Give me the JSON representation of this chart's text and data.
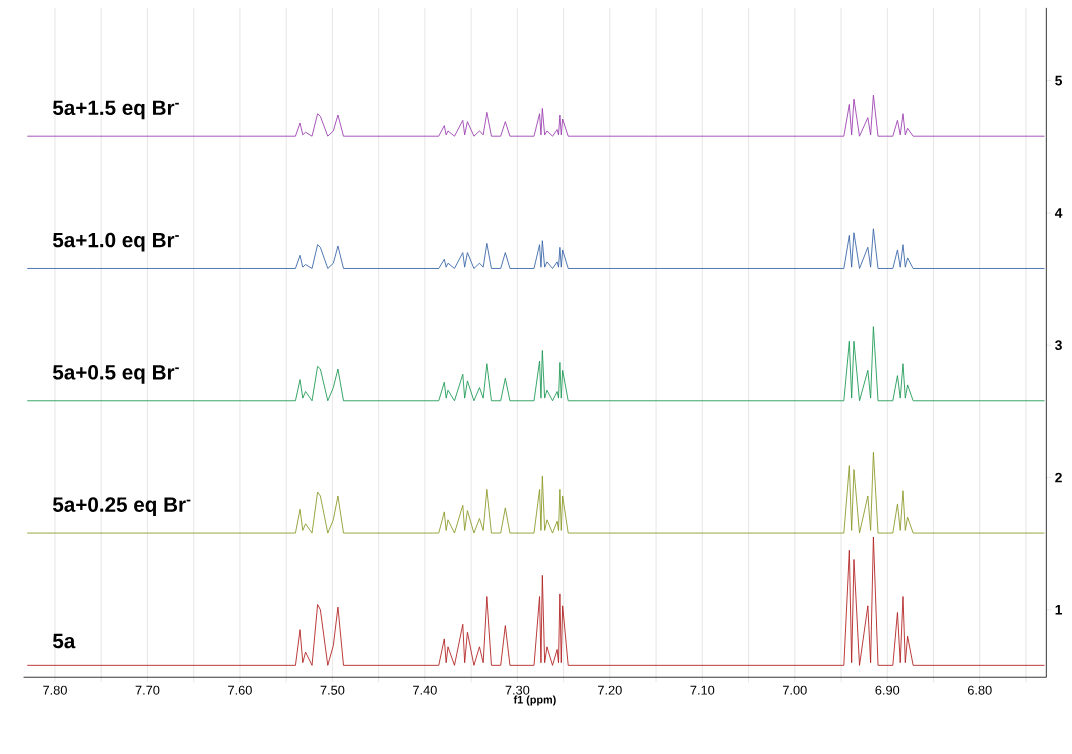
{
  "chart_data": {
    "type": "line",
    "xlabel": "f1 (ppm)",
    "grid": "x",
    "xlim": [
      7.834,
      6.728
    ],
    "ylim": [
      0.49,
      5.55
    ],
    "xticks": [
      {
        "value": 7.8,
        "label": "7.80"
      },
      {
        "value": 7.75,
        "label": null
      },
      {
        "value": 7.7,
        "label": "7.70"
      },
      {
        "value": 7.65,
        "label": null
      },
      {
        "value": 7.6,
        "label": "7.60"
      },
      {
        "value": 7.55,
        "label": null
      },
      {
        "value": 7.5,
        "label": "7.50"
      },
      {
        "value": 7.45,
        "label": null
      },
      {
        "value": 7.4,
        "label": "7.40"
      },
      {
        "value": 7.35,
        "label": null
      },
      {
        "value": 7.3,
        "label": "7.30"
      },
      {
        "value": 7.25,
        "label": null
      },
      {
        "value": 7.2,
        "label": "7.20"
      },
      {
        "value": 7.15,
        "label": null
      },
      {
        "value": 7.1,
        "label": "7.10"
      },
      {
        "value": 7.05,
        "label": null
      },
      {
        "value": 7.0,
        "label": "7.00"
      },
      {
        "value": 6.95,
        "label": null
      },
      {
        "value": 6.9,
        "label": "6.90"
      },
      {
        "value": 6.85,
        "label": null
      },
      {
        "value": 6.8,
        "label": "6.80"
      },
      {
        "value": 6.75,
        "label": null
      }
    ],
    "yticks": [
      1,
      2,
      3,
      4,
      5
    ],
    "x": [
      7.83,
      7.54,
      7.535,
      7.532,
      7.529,
      7.522,
      7.516,
      7.513,
      7.505,
      7.499,
      7.494,
      7.488,
      7.385,
      7.379,
      7.377,
      7.375,
      7.368,
      7.359,
      7.357,
      7.354,
      7.347,
      7.341,
      7.337,
      7.333,
      7.328,
      7.318,
      7.313,
      7.308,
      7.282,
      7.276,
      7.2745,
      7.273,
      7.2705,
      7.268,
      7.262,
      7.257,
      7.2555,
      7.254,
      7.2525,
      7.251,
      7.245,
      6.947,
      6.941,
      6.9385,
      6.936,
      6.93,
      6.921,
      6.918,
      6.915,
      6.91,
      6.894,
      6.889,
      6.886,
      6.883,
      6.8805,
      6.878,
      6.872,
      6.73
    ],
    "series": [
      {
        "name": "5a",
        "color": "#b22222",
        "values": [
          0.58,
          0.58,
          0.85,
          0.6,
          0.68,
          0.58,
          1.04,
          1.0,
          0.58,
          0.73,
          1.02,
          0.58,
          0.58,
          0.78,
          0.6,
          0.72,
          0.58,
          0.89,
          0.6,
          0.83,
          0.58,
          0.72,
          0.6,
          1.1,
          0.58,
          0.58,
          0.88,
          0.58,
          0.58,
          1.1,
          0.6,
          1.26,
          0.6,
          0.72,
          0.58,
          0.7,
          0.6,
          1.12,
          0.6,
          1.03,
          0.58,
          0.58,
          1.45,
          0.6,
          1.38,
          0.58,
          1.03,
          0.6,
          1.55,
          0.58,
          0.58,
          0.98,
          0.6,
          1.1,
          0.6,
          0.8,
          0.58,
          0.58
        ]
      },
      {
        "name": "5a+0.25 eq Br$^{-}$",
        "color": "#8c9a2a",
        "values": [
          1.58,
          1.58,
          1.76,
          1.6,
          1.65,
          1.58,
          1.89,
          1.86,
          1.58,
          1.68,
          1.86,
          1.58,
          1.58,
          1.74,
          1.6,
          1.68,
          1.58,
          1.79,
          1.6,
          1.75,
          1.58,
          1.69,
          1.6,
          1.91,
          1.58,
          1.58,
          1.77,
          1.58,
          1.58,
          1.91,
          1.6,
          2.01,
          1.6,
          1.68,
          1.58,
          1.67,
          1.6,
          1.91,
          1.6,
          1.86,
          1.58,
          1.58,
          2.09,
          1.6,
          2.06,
          1.58,
          1.86,
          1.6,
          2.19,
          1.58,
          1.58,
          1.8,
          1.6,
          1.9,
          1.6,
          1.7,
          1.58,
          1.58
        ]
      },
      {
        "name": "5a+0.5 eq Br$^{-}$",
        "color": "#1f9a55",
        "values": [
          2.58,
          2.58,
          2.74,
          2.6,
          2.65,
          2.58,
          2.84,
          2.82,
          2.58,
          2.68,
          2.82,
          2.58,
          2.58,
          2.72,
          2.6,
          2.66,
          2.58,
          2.78,
          2.6,
          2.73,
          2.58,
          2.68,
          2.6,
          2.86,
          2.58,
          2.58,
          2.75,
          2.58,
          2.58,
          2.88,
          2.6,
          2.96,
          2.6,
          2.66,
          2.58,
          2.65,
          2.6,
          2.87,
          2.6,
          2.81,
          2.58,
          2.58,
          3.03,
          2.6,
          3.03,
          2.58,
          2.81,
          2.6,
          3.14,
          2.58,
          2.58,
          2.77,
          2.6,
          2.86,
          2.6,
          2.7,
          2.58,
          2.58
        ]
      },
      {
        "name": "5a+1.0 eq Br$^{-}$",
        "color": "#3a66a8",
        "values": [
          3.58,
          3.58,
          3.68,
          3.59,
          3.61,
          3.58,
          3.76,
          3.74,
          3.58,
          3.62,
          3.75,
          3.58,
          3.58,
          3.65,
          3.59,
          3.62,
          3.58,
          3.7,
          3.59,
          3.7,
          3.58,
          3.62,
          3.59,
          3.77,
          3.58,
          3.58,
          3.7,
          3.58,
          3.58,
          3.76,
          3.59,
          3.79,
          3.59,
          3.63,
          3.58,
          3.63,
          3.59,
          3.74,
          3.59,
          3.72,
          3.58,
          3.58,
          3.83,
          3.59,
          3.85,
          3.58,
          3.74,
          3.59,
          3.88,
          3.58,
          3.58,
          3.72,
          3.59,
          3.76,
          3.59,
          3.66,
          3.58,
          3.58
        ]
      },
      {
        "name": "5a+1.5 eq Br$^{-}$",
        "color": "#9b3fb0",
        "values": [
          4.58,
          4.58,
          4.68,
          4.59,
          4.61,
          4.58,
          4.75,
          4.73,
          4.58,
          4.62,
          4.74,
          4.58,
          4.58,
          4.66,
          4.59,
          4.62,
          4.58,
          4.7,
          4.59,
          4.69,
          4.58,
          4.62,
          4.59,
          4.76,
          4.58,
          4.58,
          4.69,
          4.58,
          4.58,
          4.75,
          4.59,
          4.79,
          4.59,
          4.62,
          4.58,
          4.63,
          4.59,
          4.74,
          4.59,
          4.71,
          4.58,
          4.58,
          4.82,
          4.59,
          4.86,
          4.58,
          4.72,
          4.59,
          4.89,
          4.58,
          4.58,
          4.7,
          4.59,
          4.75,
          4.59,
          4.64,
          4.58,
          4.58
        ]
      }
    ]
  }
}
